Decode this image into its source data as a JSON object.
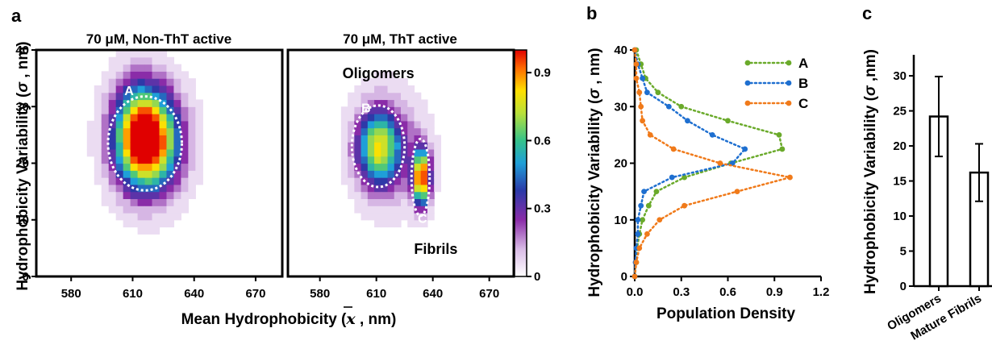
{
  "panels": {
    "a": {
      "letter": "a",
      "xlabel_pre": "Mean Hydrophobicity (",
      "xlabel_sym": "x",
      "xlabel_post": " , nm)",
      "ylabel_pre": "Hydrophobicity Variability (",
      "ylabel_sym": "σ",
      "ylabel_post": " , nm)",
      "colorbar_ticks": [
        "0.9",
        "0.6",
        "0.3",
        "0"
      ]
    },
    "b": {
      "letter": "b",
      "xlabel": "Population Density",
      "ylabel_pre": "Hydrophobicity Variability (",
      "ylabel_sym": "σ",
      "ylabel_post": " , nm)"
    },
    "c": {
      "letter": "c",
      "ylabel_pre": "Hydrophobicity Variability (",
      "ylabel_sym": "σ",
      "ylabel_post": " ,nm)"
    }
  },
  "chart_data": [
    {
      "type": "heatmap",
      "title": "70 μM, Non-ThT active",
      "x_ticks": [
        580,
        610,
        640,
        670
      ],
      "y_ticks": [
        0,
        10,
        20,
        30,
        40
      ],
      "xlim": [
        563,
        683
      ],
      "ylim": [
        0,
        40
      ],
      "colorscale": [
        "#ffffff",
        "#8a2ca8",
        "#1f3fa8",
        "#1f9fd8",
        "#35c28a",
        "#b8e03a",
        "#ffe000",
        "#ff6a00",
        "#e00000"
      ],
      "blobs": [
        {
          "cx": 618,
          "cy": 24,
          "sx": 15,
          "sy": 8.5,
          "amp": 1.0
        },
        {
          "cx": 612,
          "cy": 26,
          "sx": 12,
          "sy": 9,
          "amp": 0.35
        }
      ],
      "annotations": [
        {
          "label": "A",
          "ellipse": {
            "cx": 616,
            "cy": 23.5,
            "rx": 18,
            "ry": 8.3
          },
          "label_pos": [
            606,
            32
          ]
        }
      ],
      "colorbar": {
        "min": 0,
        "max": 1,
        "ticks": [
          0.9,
          0.6,
          0.3,
          0
        ]
      }
    },
    {
      "type": "heatmap",
      "title": "70 μM, ThT active",
      "x_ticks": [
        580,
        610,
        640,
        670
      ],
      "y_ticks": [
        0,
        10,
        20,
        30,
        40
      ],
      "xlim": [
        563,
        683
      ],
      "ylim": [
        0,
        40
      ],
      "blobs": [
        {
          "cx": 611,
          "cy": 23,
          "sx": 11,
          "sy": 6.5,
          "amp": 0.62
        },
        {
          "cx": 634,
          "cy": 17.5,
          "sx": 4.2,
          "sy": 4.8,
          "amp": 1.0
        },
        {
          "cx": 618,
          "cy": 22,
          "sx": 18,
          "sy": 9,
          "amp": 0.22
        }
      ],
      "annotations": [
        {
          "label": "B",
          "ellipse": {
            "cx": 611,
            "cy": 23,
            "rx": 14,
            "ry": 7.2
          },
          "label_pos": [
            602,
            29
          ],
          "text": "Oligomers",
          "text_pos": [
            592,
            35
          ]
        },
        {
          "label": "C",
          "ellipse": {
            "cx": 633.5,
            "cy": 17.5,
            "rx": 4.8,
            "ry": 6.8
          },
          "label_pos": [
            632,
            9.5
          ],
          "text": "Fibrils",
          "text_pos": [
            630,
            4
          ]
        }
      ]
    },
    {
      "type": "line",
      "xlabel": "Population Density",
      "xlim": [
        0,
        1.2
      ],
      "ylim": [
        0,
        40
      ],
      "x_ticks": [
        "0.0",
        "0.3",
        "0.6",
        "0.9",
        "1.2"
      ],
      "y_ticks": [
        0,
        10,
        20,
        30,
        40
      ],
      "legend_position": "top-right",
      "series": [
        {
          "name": "A",
          "color": "#6aaa2a",
          "points": [
            [
              0.0,
              0
            ],
            [
              0.01,
              2.5
            ],
            [
              0.015,
              5
            ],
            [
              0.03,
              7.5
            ],
            [
              0.05,
              10
            ],
            [
              0.09,
              12.5
            ],
            [
              0.14,
              15
            ],
            [
              0.32,
              17.5
            ],
            [
              0.62,
              20
            ],
            [
              0.95,
              22.5
            ],
            [
              0.93,
              25
            ],
            [
              0.6,
              27.5
            ],
            [
              0.3,
              30
            ],
            [
              0.15,
              32.5
            ],
            [
              0.07,
              35
            ],
            [
              0.04,
              37.5
            ],
            [
              0.01,
              40
            ]
          ]
        },
        {
          "name": "B",
          "color": "#1e6fd0",
          "points": [
            [
              0.0,
              0
            ],
            [
              0.005,
              2.5
            ],
            [
              0.01,
              5
            ],
            [
              0.02,
              7.5
            ],
            [
              0.02,
              10
            ],
            [
              0.04,
              12.5
            ],
            [
              0.06,
              15
            ],
            [
              0.24,
              17.5
            ],
            [
              0.63,
              20
            ],
            [
              0.71,
              22.5
            ],
            [
              0.5,
              25
            ],
            [
              0.34,
              27.5
            ],
            [
              0.22,
              30
            ],
            [
              0.08,
              32.5
            ],
            [
              0.05,
              35
            ],
            [
              0.02,
              37.5
            ],
            [
              0.0,
              40
            ]
          ]
        },
        {
          "name": "C",
          "color": "#f07a1a",
          "points": [
            [
              0.0,
              0
            ],
            [
              0.01,
              2.5
            ],
            [
              0.03,
              5
            ],
            [
              0.08,
              7.5
            ],
            [
              0.16,
              10
            ],
            [
              0.32,
              12.5
            ],
            [
              0.66,
              15
            ],
            [
              1.0,
              17.5
            ],
            [
              0.55,
              20
            ],
            [
              0.25,
              22.5
            ],
            [
              0.1,
              25
            ],
            [
              0.05,
              27.5
            ],
            [
              0.04,
              30
            ],
            [
              0.03,
              32.5
            ],
            [
              0.01,
              35
            ],
            [
              0.01,
              37.5
            ],
            [
              0.0,
              40
            ]
          ]
        }
      ]
    },
    {
      "type": "bar",
      "categories": [
        "Oligomers",
        "Mature Fibrils"
      ],
      "values": [
        24.2,
        16.2
      ],
      "errors": [
        5.7,
        4.1
      ],
      "ylim": [
        0,
        33
      ],
      "y_ticks": [
        0,
        5,
        10,
        15,
        20,
        25,
        30
      ]
    }
  ]
}
